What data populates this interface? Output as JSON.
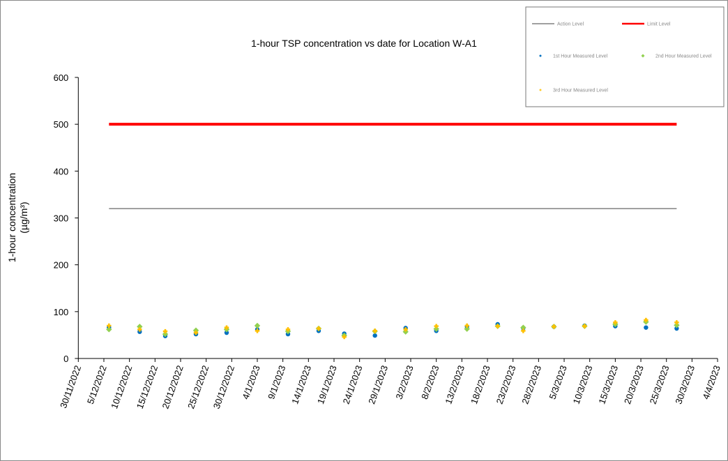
{
  "chart_data": {
    "type": "scatter",
    "title": "1-hour TSP concentration vs date for Location W-A1",
    "xlabel": "",
    "ylabel": "1-hour concentration (µg/m³)",
    "ylim": [
      0,
      600
    ],
    "yticks": [
      0,
      100,
      200,
      300,
      400,
      500,
      600
    ],
    "xlim": [
      "2022-11-30",
      "2023-04-04"
    ],
    "xtick_step_days": 5,
    "xtick_labels": [
      "30/11/2022",
      "5/12/2022",
      "10/12/2022",
      "15/12/2022",
      "20/12/2022",
      "25/12/2022",
      "30/12/2022",
      "4/1/2023",
      "9/1/2023",
      "14/1/2023",
      "19/1/2023",
      "24/1/2023",
      "29/1/2023",
      "3/2/2023",
      "8/2/2023",
      "13/2/2023",
      "18/2/2023",
      "23/2/2023",
      "28/2/2023",
      "5/3/2023",
      "10/3/2023",
      "15/3/2023",
      "20/3/2023",
      "25/3/2023",
      "30/3/2023",
      "4/4/2023"
    ],
    "grid": false,
    "legend_placement": "top-right",
    "x": [
      "2022-12-06",
      "2022-12-12",
      "2022-12-17",
      "2022-12-23",
      "2022-12-29",
      "2023-01-04",
      "2023-01-10",
      "2023-01-16",
      "2023-01-21",
      "2023-01-27",
      "2023-02-02",
      "2023-02-08",
      "2023-02-14",
      "2023-02-20",
      "2023-02-25",
      "2023-03-03",
      "2023-03-09",
      "2023-03-15",
      "2023-03-21",
      "2023-03-27"
    ],
    "lines": [
      {
        "name": "Action Level",
        "value": 320,
        "color": "#808080"
      },
      {
        "name": "Limit Level",
        "value": 500,
        "color": "#ff0000"
      }
    ],
    "series": [
      {
        "name": "1st Hour Measured Level",
        "color": "#0070c0",
        "marker": "circle",
        "values": [
          66,
          57,
          48,
          52,
          55,
          62,
          52,
          59,
          53,
          49,
          65,
          59,
          68,
          73,
          65,
          68,
          70,
          69,
          66,
          64
        ]
      },
      {
        "name": "2nd Hour Measured Level",
        "color": "#92d050",
        "marker": "diamond",
        "values": [
          62,
          68,
          52,
          60,
          62,
          70,
          58,
          64,
          49,
          58,
          57,
          63,
          63,
          69,
          66,
          68,
          69,
          73,
          78,
          71
        ]
      },
      {
        "name": "3rd Hour Measured Level",
        "color": "#ffc000",
        "marker": "plus",
        "values": [
          70,
          62,
          58,
          55,
          66,
          59,
          62,
          64,
          46,
          59,
          62,
          69,
          70,
          69,
          59,
          68,
          69,
          77,
          82,
          77
        ]
      }
    ]
  }
}
